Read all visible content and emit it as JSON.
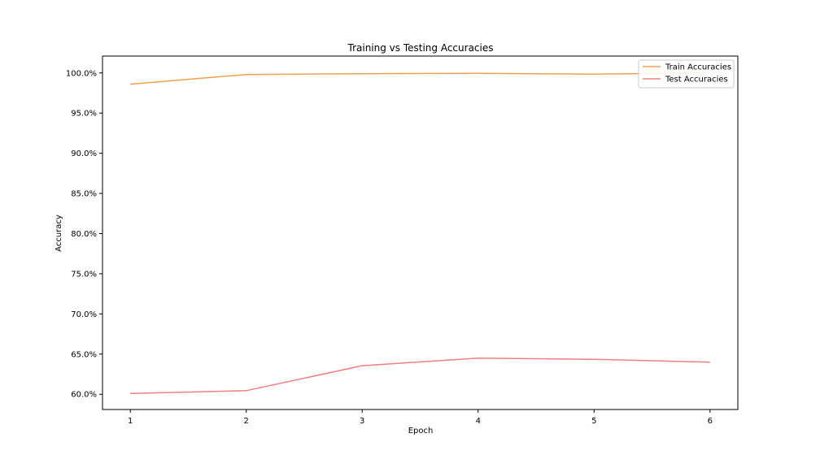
{
  "chart_data": {
    "type": "line",
    "title": "Training vs Testing Accuracies",
    "xlabel": "Epoch",
    "ylabel": "Accuracy",
    "x": [
      1,
      2,
      3,
      4,
      5,
      6
    ],
    "xticks": [
      "1",
      "2",
      "3",
      "4",
      "5",
      "6"
    ],
    "yticks": [
      {
        "value": 60,
        "label": "60.0%"
      },
      {
        "value": 65,
        "label": "65.0%"
      },
      {
        "value": 70,
        "label": "70.0%"
      },
      {
        "value": 75,
        "label": "75.0%"
      },
      {
        "value": 80,
        "label": "80.0%"
      },
      {
        "value": 85,
        "label": "85.0%"
      },
      {
        "value": 90,
        "label": "90.0%"
      },
      {
        "value": 95,
        "label": "95.0%"
      },
      {
        "value": 100,
        "label": "100.0%"
      }
    ],
    "xlim": [
      0.76,
      6.24
    ],
    "ylim": [
      58.1,
      102.1
    ],
    "grid": false,
    "legend_position": "top-right",
    "series": [
      {
        "name": "Train Accuracies",
        "color": "#f0a050",
        "values": [
          98.6,
          99.8,
          99.9,
          99.95,
          99.85,
          100.0
        ]
      },
      {
        "name": "Test Accuracies",
        "color": "#f08080",
        "values": [
          60.1,
          60.45,
          63.55,
          64.5,
          64.35,
          64.0
        ]
      }
    ]
  }
}
